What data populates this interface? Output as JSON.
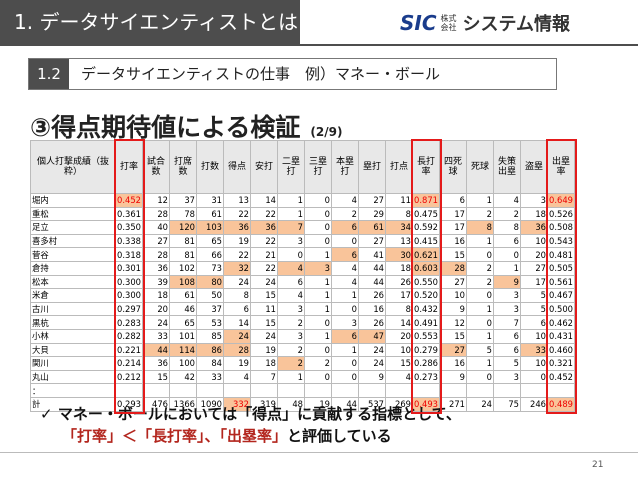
{
  "header": {
    "title": "1. データサイエンティストとは",
    "logo": {
      "mark": "SIC",
      "corp": "株式会社",
      "name": "システム情報"
    }
  },
  "section": {
    "number": "1.2",
    "title": "データサイエンティストの仕事　例）マネー・ボール"
  },
  "heading": {
    "title": "③得点期待値による検証",
    "page": "(2/9)"
  },
  "table": {
    "header": [
      "個人打撃成績（抜粋）",
      "打率",
      "試合数",
      "打席数",
      "打数",
      "得点",
      "安打",
      "二塁打",
      "三塁打",
      "本塁打",
      "塁打",
      "打点",
      "長打率",
      "四死球",
      "死球",
      "失策出塁",
      "盗塁",
      "出塁率"
    ],
    "rows": [
      [
        "堀内",
        "0.452",
        "12",
        "37",
        "31",
        "13",
        "14",
        "1",
        "0",
        "4",
        "27",
        "11",
        "0.871",
        "6",
        "1",
        "4",
        "3",
        "0.649"
      ],
      [
        "重松",
        "0.361",
        "28",
        "78",
        "61",
        "22",
        "22",
        "1",
        "0",
        "2",
        "29",
        "8",
        "0.475",
        "17",
        "2",
        "2",
        "18",
        "0.526"
      ],
      [
        "足立",
        "0.350",
        "40",
        "120",
        "103",
        "36",
        "36",
        "7",
        "0",
        "6",
        "61",
        "34",
        "0.592",
        "17",
        "8",
        "8",
        "36",
        "0.508"
      ],
      [
        "喜多村",
        "0.338",
        "27",
        "81",
        "65",
        "19",
        "22",
        "3",
        "0",
        "0",
        "27",
        "13",
        "0.415",
        "16",
        "1",
        "6",
        "10",
        "0.543"
      ],
      [
        "菅谷",
        "0.318",
        "28",
        "81",
        "66",
        "22",
        "21",
        "0",
        "1",
        "6",
        "41",
        "30",
        "0.621",
        "15",
        "0",
        "0",
        "20",
        "0.481"
      ],
      [
        "倉持",
        "0.301",
        "36",
        "102",
        "73",
        "32",
        "22",
        "4",
        "3",
        "4",
        "44",
        "18",
        "0.603",
        "28",
        "2",
        "1",
        "27",
        "0.505"
      ],
      [
        "松本",
        "0.300",
        "39",
        "108",
        "80",
        "24",
        "24",
        "6",
        "1",
        "4",
        "44",
        "26",
        "0.550",
        "27",
        "2",
        "9",
        "17",
        "0.561"
      ],
      [
        "米倉",
        "0.300",
        "18",
        "61",
        "50",
        "8",
        "15",
        "4",
        "1",
        "1",
        "26",
        "17",
        "0.520",
        "10",
        "0",
        "3",
        "5",
        "0.467"
      ],
      [
        "古川",
        "0.297",
        "20",
        "46",
        "37",
        "6",
        "11",
        "3",
        "1",
        "0",
        "16",
        "8",
        "0.432",
        "9",
        "1",
        "3",
        "5",
        "0.500"
      ],
      [
        "黒杭",
        "0.283",
        "24",
        "65",
        "53",
        "14",
        "15",
        "2",
        "0",
        "3",
        "26",
        "14",
        "0.491",
        "12",
        "0",
        "7",
        "6",
        "0.462"
      ],
      [
        "小林",
        "0.282",
        "33",
        "101",
        "85",
        "24",
        "24",
        "3",
        "1",
        "6",
        "47",
        "20",
        "0.553",
        "15",
        "1",
        "6",
        "10",
        "0.431"
      ],
      [
        "大貝",
        "0.221",
        "44",
        "114",
        "86",
        "28",
        "19",
        "2",
        "0",
        "1",
        "24",
        "10",
        "0.279",
        "27",
        "5",
        "6",
        "33",
        "0.460"
      ],
      [
        "関川",
        "0.214",
        "36",
        "100",
        "84",
        "19",
        "18",
        "2",
        "2",
        "0",
        "24",
        "15",
        "0.286",
        "16",
        "1",
        "5",
        "10",
        "0.321"
      ],
      [
        "丸山",
        "0.212",
        "15",
        "42",
        "33",
        "4",
        "7",
        "1",
        "0",
        "0",
        "9",
        "4",
        "0.273",
        "9",
        "0",
        "3",
        "0",
        "0.452"
      ],
      [
        "："
      ],
      [
        "計",
        "0.293",
        "476",
        "1366",
        "1090",
        "332",
        "319",
        "48",
        "19",
        "44",
        "537",
        "269",
        "0.493",
        "271",
        "24",
        "75",
        "246",
        "0.489"
      ]
    ]
  },
  "bullet": {
    "mark": "✓",
    "lines": [
      [
        "マネー・ボールにおいては「得点」に貢献する指標として、"
      ],
      [
        "「打率」＜「長打率」、「出塁率」",
        "と評価している"
      ]
    ]
  },
  "page_number": "21"
}
